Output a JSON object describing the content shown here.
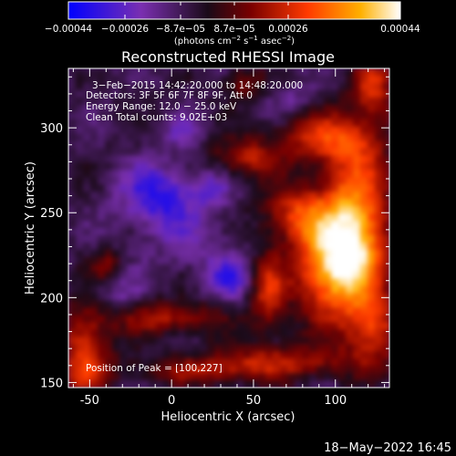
{
  "colorbar": {
    "ticks": [
      "−0.00044",
      "−0.00026",
      "−8.7e−05",
      "8.7e−05",
      "0.00026",
      "0.00044"
    ],
    "stops": [
      "#0000ff",
      "#7a2fb0",
      "#1a0a18",
      "#7a0000",
      "#ff3a00",
      "#ffb000",
      "#ffffff"
    ],
    "unit_label_parts": [
      "(photons cm",
      "−2",
      " s",
      "−1",
      " asec",
      "−2",
      ")"
    ]
  },
  "plot": {
    "title": "Reconstructed RHESSI Image",
    "info_lines": [
      "3−Feb−2015 14:42:20.000 to 14:48:20.000",
      "Detectors: 3F 5F 6F 7F 8F 9F, Att 0",
      "Energy Range: 12.0 − 25.0 keV",
      "Clean     Total counts: 9.02E+03"
    ],
    "peak_label": "Position of Peak = [100,227]",
    "xlabel": "Heliocentric X (arcsec)",
    "ylabel": "Heliocentric Y (arcsec)",
    "x_range": [
      -63,
      133
    ],
    "y_range": [
      147,
      335
    ],
    "x_ticks": [
      -50,
      0,
      50,
      100
    ],
    "y_ticks": [
      150,
      200,
      250,
      300
    ]
  },
  "footer": {
    "timestamp": "18−May−2022 16:45"
  }
}
